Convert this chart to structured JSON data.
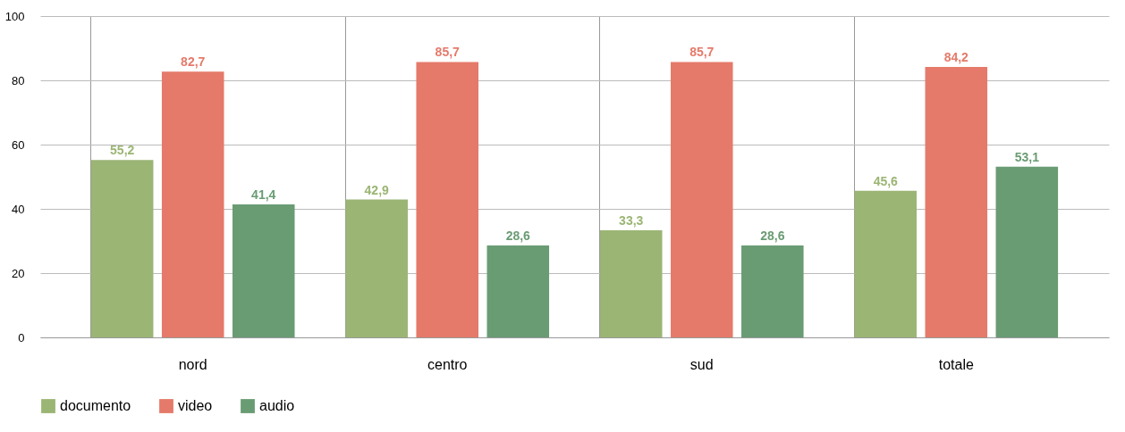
{
  "chart_data": {
    "type": "bar",
    "categories": [
      "nord",
      "centro",
      "sud",
      "totale"
    ],
    "series": [
      {
        "name": "documento",
        "color": "#9bb574",
        "values": [
          55.2,
          42.9,
          33.3,
          45.6
        ],
        "value_labels": [
          "55,2",
          "42,9",
          "33,3",
          "45,6"
        ]
      },
      {
        "name": "video",
        "color": "#e57a6a",
        "values": [
          82.7,
          85.7,
          85.7,
          84.2
        ],
        "value_labels": [
          "82,7",
          "85,7",
          "85,7",
          "84,2"
        ]
      },
      {
        "name": "audio",
        "color": "#6a9c74",
        "values": [
          41.4,
          28.6,
          28.6,
          53.1
        ],
        "value_labels": [
          "41,4",
          "28,6",
          "28,6",
          "53,1"
        ]
      }
    ],
    "ylim": [
      0,
      100
    ],
    "yticks": [
      0,
      20,
      40,
      60,
      80,
      100
    ],
    "grid": true,
    "legend": "bottom"
  }
}
